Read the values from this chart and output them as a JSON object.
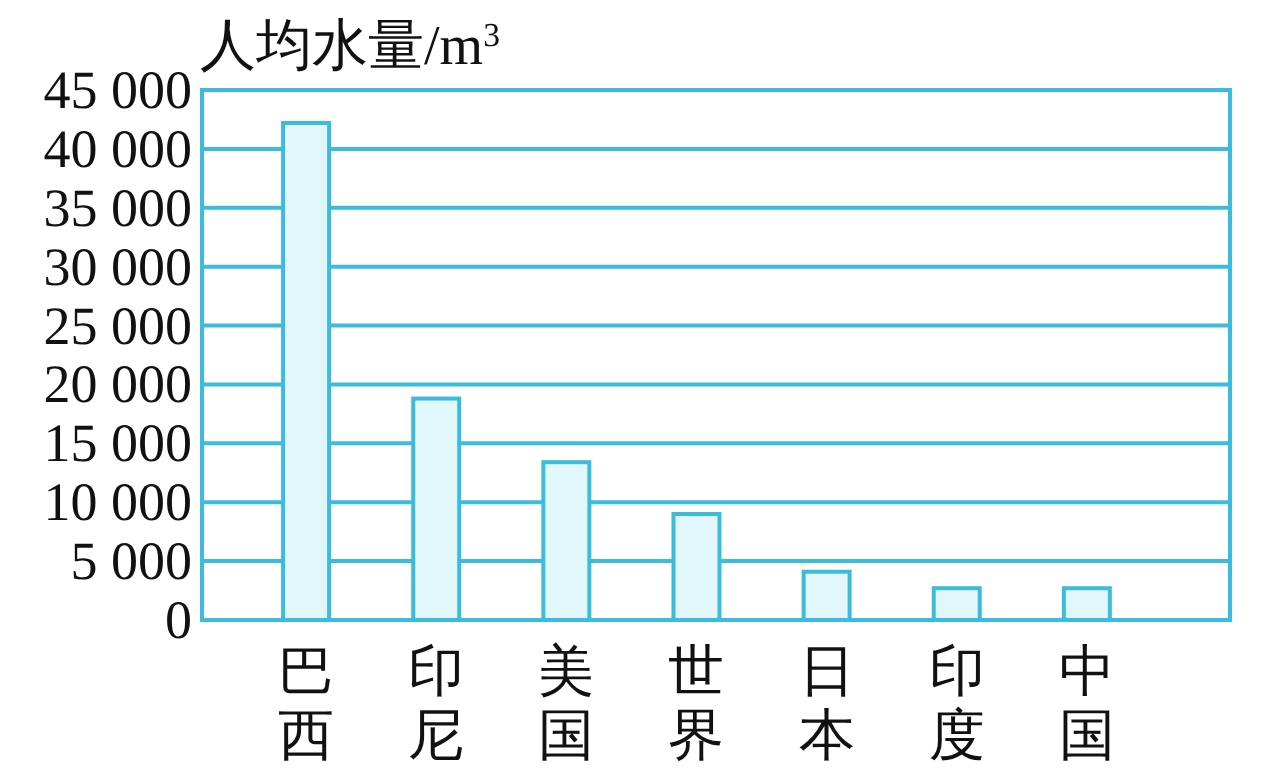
{
  "chart_data": {
    "type": "bar",
    "ylabel": "人均水量/m$^{3}$",
    "categories": [
      "巴西",
      "印尼",
      "美国",
      "世界",
      "日本",
      "印度",
      "中国"
    ],
    "values": [
      42200,
      18800,
      13400,
      9000,
      4100,
      2700,
      2700
    ],
    "color": "#e2f7fc",
    "ylim": [
      0,
      45000
    ],
    "yticks": [
      0,
      {
        "value": 5000,
        "label": "5 000"
      },
      {
        "value": 10000,
        "label": "10 000"
      },
      {
        "value": 15000,
        "label": "15 000"
      },
      {
        "value": 20000,
        "label": "20 000"
      },
      {
        "value": 25000,
        "label": "25 000"
      },
      {
        "value": 30000,
        "label": "30 000"
      },
      {
        "value": 35000,
        "label": "35 000"
      },
      {
        "value": 40000,
        "label": "40 000"
      },
      {
        "value": 45000,
        "label": "45 000"
      }
    ],
    "grid": "y"
  }
}
